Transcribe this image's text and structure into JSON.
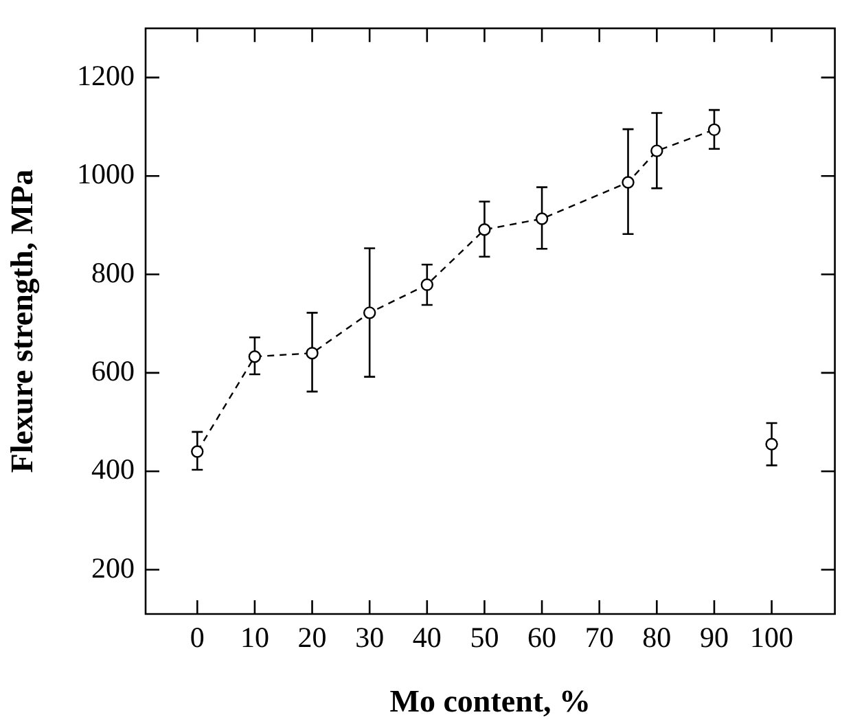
{
  "chart_data": {
    "type": "line",
    "xlabel": "Mo content, %",
    "ylabel": "Flexure strength, MPa",
    "xlim": [
      -9,
      111
    ],
    "xticks": [
      0,
      10,
      20,
      30,
      40,
      50,
      60,
      70,
      80,
      90,
      100
    ],
    "ylim": [
      110,
      1300
    ],
    "yticks": [
      200,
      400,
      600,
      800,
      1000,
      1200
    ],
    "grid": false,
    "legend": false,
    "marker": "circle",
    "series": [
      {
        "type": "line",
        "line_style": "dashed",
        "color": "#000000",
        "x": [
          0,
          10,
          20,
          30,
          40,
          50,
          60,
          75,
          80,
          90
        ],
        "values": [
          440,
          633,
          640,
          722,
          779,
          891,
          913,
          987,
          1051,
          1094
        ],
        "errors": [
          [
            403,
            480
          ],
          [
            597,
            672
          ],
          [
            562,
            722
          ],
          [
            592,
            853
          ],
          [
            738,
            820
          ],
          [
            836,
            948
          ],
          [
            852,
            977
          ],
          [
            882,
            1095
          ],
          [
            975,
            1128
          ],
          [
            1055,
            1134
          ]
        ]
      },
      {
        "type": "scatter",
        "color": "#000000",
        "x": [
          100
        ],
        "values": [
          455
        ],
        "errors": [
          [
            412,
            498
          ]
        ]
      }
    ]
  }
}
